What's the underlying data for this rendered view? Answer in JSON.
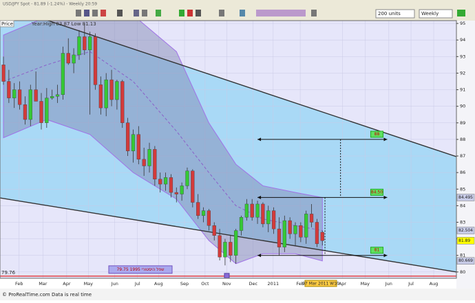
{
  "window": {
    "title": "USD/JPY Spot - 81.89 (-1.24%) - Weekly 20:59",
    "units": "200 units",
    "period": "Weekly"
  },
  "chart_data": {
    "type": "candlestick",
    "panel": "Price",
    "info": "Year:High 83.87 Low 81.13",
    "open": [
      92.5,
      91.5,
      90.5,
      91.0,
      90.1,
      89.2,
      91.0,
      90.3,
      89.0,
      90.5,
      90.6,
      90.7,
      93.2,
      92.6,
      93.1,
      94.2,
      93.4,
      94.2,
      91.3,
      89.9,
      91.6,
      90.4,
      91.5,
      89.0,
      87.3,
      88.3,
      86.8,
      86.4,
      87.4,
      85.6,
      85.3,
      85.7,
      84.8,
      84.7,
      85.2,
      86.1,
      84.2,
      83.4,
      83.7,
      82.8,
      82.2,
      80.9,
      81.8,
      81.0,
      82.5,
      83.3,
      84.1,
      83.3,
      84.1,
      82.9,
      83.7,
      82.6,
      81.5,
      83.1,
      82.3,
      82.8,
      82.1,
      83.5,
      83.0,
      82.4
    ],
    "high": [
      93,
      92.2,
      91.4,
      91.5,
      90.6,
      91.3,
      92.1,
      90.8,
      91.1,
      91.0,
      91.3,
      93.6,
      94.1,
      93.5,
      94.6,
      95.0,
      94.5,
      94.4,
      91.8,
      92.0,
      92.2,
      91.6,
      91.6,
      89.3,
      88.6,
      88.8,
      87.5,
      87.8,
      87.6,
      86.0,
      86.0,
      85.9,
      85.1,
      85.4,
      86.3,
      86.2,
      84.7,
      83.9,
      83.8,
      83.0,
      82.6,
      82.0,
      82.2,
      82.6,
      83.4,
      84.4,
      84.4,
      84.3,
      84.2,
      84.0,
      83.9,
      83.3,
      83.4,
      83.3,
      83.0,
      83.0,
      83.7,
      84.1,
      83.2,
      82.5
    ],
    "low": [
      91.3,
      90.2,
      89.9,
      89.8,
      88.9,
      88.8,
      90.3,
      88.6,
      88.7,
      90.4,
      90.2,
      90.4,
      92.5,
      92.0,
      92.8,
      93.1,
      89.5,
      91.0,
      89.5,
      89.4,
      90.0,
      89.8,
      88.7,
      87.0,
      86.6,
      86.5,
      85.8,
      86.0,
      85.2,
      84.8,
      84.9,
      84.5,
      84.2,
      84.3,
      85.0,
      83.9,
      83.2,
      83.0,
      82.5,
      81.9,
      80.7,
      80.4,
      80.6,
      80.5,
      82.2,
      83.1,
      83.1,
      82.9,
      82.7,
      82.4,
      82.3,
      81.0,
      81.2,
      82.0,
      81.6,
      81.8,
      81.7,
      82.7,
      81.5,
      81.6
    ],
    "close": [
      91.5,
      90.5,
      91.0,
      90.1,
      89.2,
      91.0,
      90.3,
      89.0,
      90.5,
      90.6,
      90.7,
      93.2,
      92.6,
      93.1,
      94.2,
      93.4,
      94.2,
      91.3,
      89.9,
      91.6,
      90.4,
      91.5,
      89.0,
      87.3,
      88.3,
      86.8,
      86.4,
      87.4,
      85.6,
      85.3,
      85.7,
      84.8,
      84.7,
      85.2,
      86.1,
      84.2,
      83.4,
      83.7,
      82.8,
      82.2,
      80.9,
      81.8,
      81.0,
      82.5,
      83.3,
      84.1,
      83.3,
      84.1,
      82.9,
      83.7,
      82.6,
      81.5,
      83.1,
      82.3,
      82.8,
      82.1,
      83.5,
      83.0,
      81.7,
      81.89
    ],
    "colors": {
      "up": "#35c935",
      "down": "#d33a3a",
      "wick": "#333333"
    },
    "xlim": [
      -0.64,
      83.8
    ],
    "xticks": [
      {
        "value": 2.9,
        "label": "Feb"
      },
      {
        "value": 7.3,
        "label": "Mar"
      },
      {
        "value": 11.7,
        "label": "Apr"
      },
      {
        "value": 15.7,
        "label": "May"
      },
      {
        "value": 20.6,
        "label": "Jun"
      },
      {
        "value": 24.8,
        "label": "Jul"
      },
      {
        "value": 28.7,
        "label": "Aug"
      },
      {
        "value": 33.5,
        "label": "Sep"
      },
      {
        "value": 37.3,
        "label": "Oct"
      },
      {
        "value": 41.3,
        "label": "Nov"
      },
      {
        "value": 46.2,
        "label": "Dec"
      },
      {
        "value": 49.9,
        "label": "2011"
      },
      {
        "value": 54.9,
        "label": "Feb"
      },
      {
        "value": 62.7,
        "label": "Apr"
      },
      {
        "value": 66.9,
        "label": "May"
      },
      {
        "value": 71.3,
        "label": "Jun"
      },
      {
        "value": 75.4,
        "label": "Jul"
      },
      {
        "value": 79.6,
        "label": "Aug"
      }
    ],
    "cursor": {
      "value": 58.2,
      "label": "07 Mar 2011 W10"
    },
    "ylim": [
      79.62,
      95.17
    ],
    "yticks": [
      80,
      81,
      82,
      83,
      84,
      85,
      86,
      87,
      88,
      89,
      90,
      91,
      92,
      93,
      94,
      95
    ],
    "bands": {
      "x": [
        0,
        8,
        16,
        24,
        32,
        38,
        43,
        48,
        54,
        59
      ],
      "upper": [
        94.3,
        95.4,
        96,
        95.5,
        93.3,
        89,
        86.5,
        85.2,
        84.8,
        84.49
      ],
      "middle": [
        91.5,
        92.5,
        93.3,
        91.5,
        88.5,
        86,
        84,
        83.2,
        82.8,
        82.5
      ],
      "lower": [
        88.1,
        89.2,
        88.3,
        86,
        84.4,
        81.9,
        80.5,
        81.1,
        81.1,
        80.67
      ]
    },
    "channel": {
      "x": [
        -0.64,
        83.8
      ],
      "upper": [
        96.14,
        86.96
      ],
      "lower": [
        84.47,
        80.0
      ]
    },
    "levels": [
      88,
      {
        "value": 84.5,
        "label": "84.50"
      },
      81
    ],
    "levels_x": [
      47,
      71
    ],
    "price_marks": [
      84.495,
      82.504,
      81.89,
      80.669
    ],
    "historic_low": {
      "value": 79.75,
      "label": "79.75  שפל היסטורי 1995"
    },
    "axis_low_label": "79.76"
  },
  "footer": "© ProRealTime.com  Data is real time"
}
